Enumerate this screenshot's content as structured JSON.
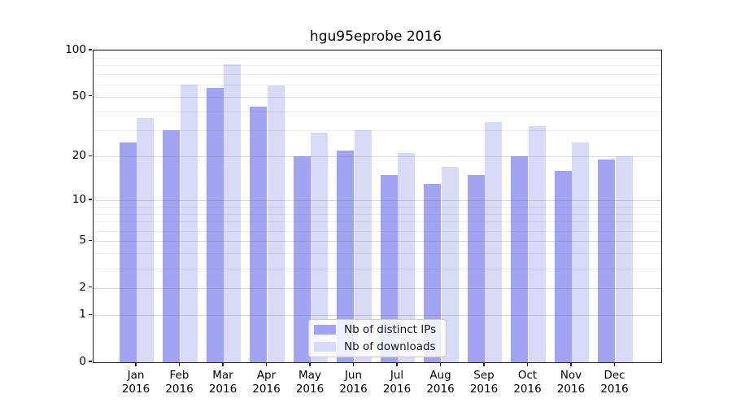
{
  "chart_data": {
    "type": "bar",
    "title": "hgu95eprobe 2016",
    "categories": [
      "Jan",
      "Feb",
      "Mar",
      "Apr",
      "May",
      "Jun",
      "Jul",
      "Aug",
      "Sep",
      "Oct",
      "Nov",
      "Dec"
    ],
    "year_label": "2016",
    "series": [
      {
        "name": "Nb of distinct IPs",
        "color": "#a3a3f3",
        "values": [
          25,
          30,
          57,
          43,
          20,
          22,
          15,
          13,
          15,
          20,
          16,
          19
        ]
      },
      {
        "name": "Nb of downloads",
        "color": "#d9d9f8",
        "values": [
          36,
          60,
          81,
          59,
          29,
          30,
          21,
          17,
          34,
          32,
          25,
          20
        ]
      }
    ],
    "y_ticks": [
      0,
      1,
      2,
      5,
      10,
      20,
      50,
      100
    ],
    "y_minor_gridlines": [
      3,
      4,
      6,
      7,
      8,
      9,
      30,
      40,
      60,
      70,
      80,
      90
    ],
    "ylim": [
      0,
      100
    ],
    "y_scale": "log10(1+x)",
    "grid": true,
    "legend_position": "lower center",
    "colors": {
      "spine": "#262626",
      "grid_major": "rgba(110,110,110,0.25)",
      "grid_minor": "rgba(110,110,110,0.12)"
    }
  }
}
